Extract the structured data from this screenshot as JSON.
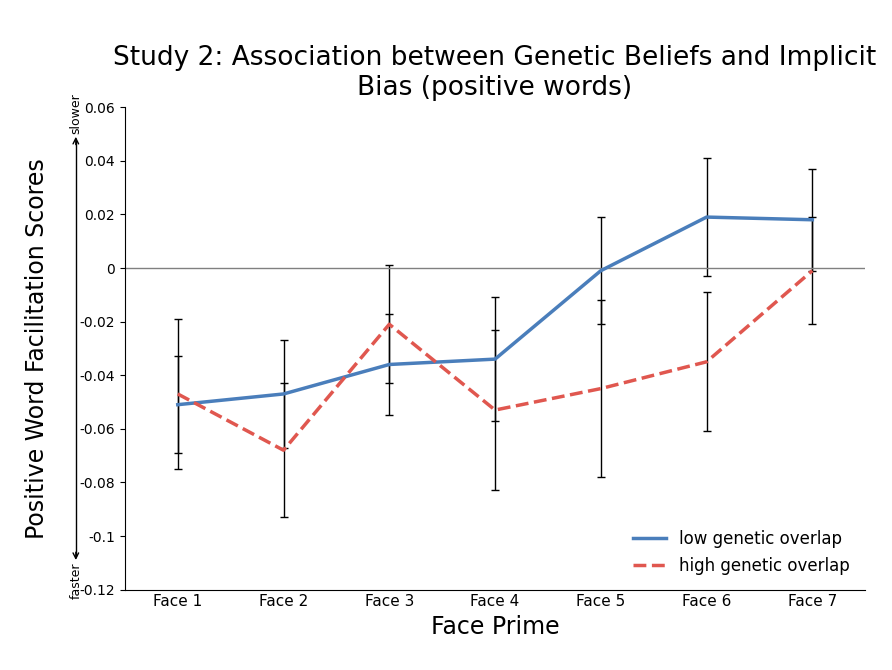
{
  "chart_data": {
    "type": "line",
    "title": "Study 2: Association between Genetic Beliefs and Implicit Bias (positive words)",
    "x_label": "Face Prime",
    "y_label": "Positive Word Facilitation Scores",
    "annotations": [
      "slower",
      "faster"
    ],
    "categories": [
      "Face 1",
      "Face 2",
      "Face 3",
      "Face 4",
      "Face 5",
      "Face 6",
      "Face 7"
    ],
    "series": [
      {
        "name": "low genetic overlap",
        "color": "#4a7ebb",
        "line_style": "solid",
        "values": [
          -0.051,
          -0.047,
          -0.036,
          -0.034,
          -0.001,
          0.019,
          0.018
        ],
        "errors": [
          0.018,
          0.02,
          0.019,
          0.023,
          0.02,
          0.022,
          0.019
        ]
      },
      {
        "name": "high genetic overlap",
        "color": "#e0574f",
        "line_style": "dashed",
        "values": [
          -0.047,
          -0.068,
          -0.021,
          -0.053,
          -0.045,
          -0.035,
          -0.001
        ],
        "errors": [
          0.028,
          0.025,
          0.022,
          0.03,
          0.033,
          0.026,
          0.02
        ]
      }
    ],
    "ylim": [
      -0.12,
      0.06
    ],
    "yticks": [
      -0.12,
      -0.1,
      -0.08,
      -0.06,
      -0.04,
      -0.02,
      0,
      0.02,
      0.04,
      0.06
    ],
    "legend": "lower right",
    "grid": false
  }
}
